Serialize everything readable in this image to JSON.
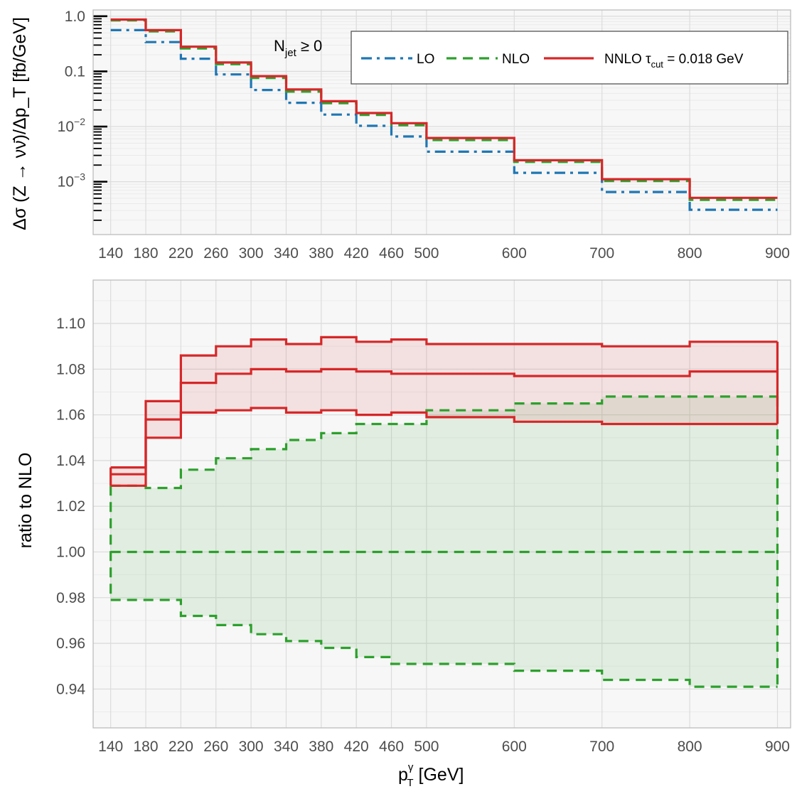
{
  "chart_data": [
    {
      "type": "line",
      "panel": "top",
      "ylabel": "Δσ (Z → νν̄)/Δp_T [fb/GeV]",
      "yscale": "log",
      "ylim": [
        0.00011,
        1.3
      ],
      "yticks": [
        {
          "value": 1.0,
          "label": "1.0"
        },
        {
          "value": 0.1,
          "label": "0.1"
        },
        {
          "value": 0.01,
          "label": "10^-2"
        },
        {
          "value": 0.001,
          "label": "10^-3"
        }
      ],
      "xlim": [
        120,
        915
      ],
      "xticks": [
        140,
        180,
        220,
        260,
        300,
        340,
        380,
        420,
        460,
        500,
        600,
        700,
        800,
        900
      ],
      "bin_edges": [
        140,
        180,
        220,
        260,
        300,
        340,
        380,
        420,
        460,
        500,
        600,
        700,
        800,
        900
      ],
      "annotation": {
        "main": "N",
        "sub": "jet",
        "rest": "≥ 0"
      },
      "legend": {
        "position": "top-right",
        "entries": [
          {
            "series": "LO",
            "label": "LO"
          },
          {
            "series": "NLO",
            "label": "NLO"
          },
          {
            "series": "NNLO",
            "label_main": "NNLO τ",
            "label_sub": "cut",
            "label_rest": "= 0.018 GeV"
          }
        ]
      },
      "grid": true,
      "series": [
        {
          "name": "LO",
          "color": "#1f77b4",
          "dash": "dashdot",
          "values": [
            0.56,
            0.34,
            0.17,
            0.088,
            0.046,
            0.027,
            0.0165,
            0.0103,
            0.0066,
            0.0035,
            0.00145,
            0.00065,
            0.00031
          ]
        },
        {
          "name": "NLO",
          "color": "#2ca02c",
          "dash": "dashed",
          "values": [
            0.84,
            0.53,
            0.26,
            0.135,
            0.076,
            0.043,
            0.0265,
            0.0163,
            0.0106,
            0.0057,
            0.00228,
            0.00103,
            0.00047
          ]
        },
        {
          "name": "NNLO",
          "color": "#d62728",
          "dash": "solid",
          "values": [
            0.87,
            0.56,
            0.28,
            0.145,
            0.082,
            0.047,
            0.0288,
            0.0176,
            0.0115,
            0.0062,
            0.00245,
            0.00111,
            0.00051
          ]
        }
      ]
    },
    {
      "type": "line",
      "panel": "bottom",
      "ylabel": "ratio to NLO",
      "xlabel_main": "p",
      "xlabel_sub": "T",
      "xlabel_sup": "γ",
      "xlabel_rest": " [GeV]",
      "ylim": [
        0.923,
        1.119
      ],
      "yticks": [
        0.94,
        0.96,
        0.98,
        1.0,
        1.02,
        1.04,
        1.06,
        1.08,
        1.1
      ],
      "ytick_labels": [
        "0.94",
        "0.96",
        "0.98",
        "1.00",
        "1.02",
        "1.04",
        "1.06",
        "1.08",
        "1.10"
      ],
      "xlim": [
        120,
        915
      ],
      "xticks": [
        140,
        180,
        220,
        260,
        300,
        340,
        380,
        420,
        460,
        500,
        600,
        700,
        800,
        900
      ],
      "bin_edges": [
        140,
        180,
        220,
        260,
        300,
        340,
        380,
        420,
        460,
        500,
        600,
        700,
        800,
        900
      ],
      "grid": true,
      "series": [
        {
          "name": "NLO",
          "color": "#2ca02c",
          "dash": "dashed",
          "band_color": "#2ca02c",
          "central": [
            1.0,
            1.0,
            1.0,
            1.0,
            1.0,
            1.0,
            1.0,
            1.0,
            1.0,
            1.0,
            1.0,
            1.0,
            1.0
          ],
          "upper": [
            1.029,
            1.028,
            1.036,
            1.041,
            1.045,
            1.049,
            1.052,
            1.056,
            1.056,
            1.062,
            1.065,
            1.068,
            1.068
          ],
          "lower": [
            0.979,
            0.979,
            0.972,
            0.968,
            0.964,
            0.961,
            0.958,
            0.954,
            0.951,
            0.951,
            0.948,
            0.944,
            0.941
          ]
        },
        {
          "name": "NNLO",
          "color": "#d62728",
          "dash": "solid",
          "band_color": "#d62728",
          "central": [
            1.034,
            1.058,
            1.074,
            1.078,
            1.08,
            1.079,
            1.08,
            1.079,
            1.078,
            1.078,
            1.077,
            1.077,
            1.079
          ],
          "upper": [
            1.037,
            1.066,
            1.086,
            1.09,
            1.093,
            1.091,
            1.094,
            1.092,
            1.093,
            1.091,
            1.091,
            1.09,
            1.092
          ],
          "lower": [
            1.029,
            1.05,
            1.061,
            1.062,
            1.063,
            1.061,
            1.062,
            1.06,
            1.061,
            1.059,
            1.057,
            1.056,
            1.056
          ]
        }
      ]
    }
  ]
}
